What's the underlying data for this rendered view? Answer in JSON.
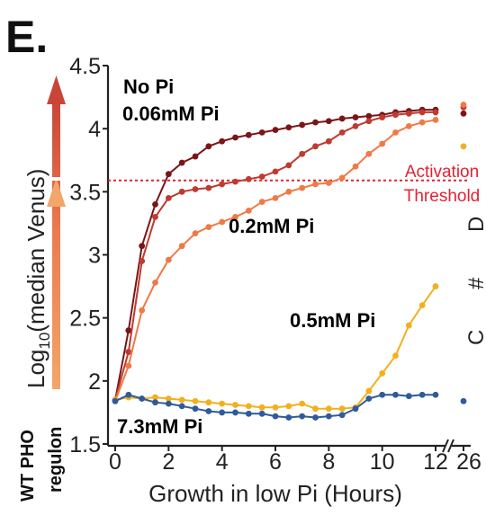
{
  "panel_label": "E.",
  "threshold_label_1": "Activation",
  "threshold_label_2": "Threshold",
  "side_label_1": "WT PHO",
  "side_label_2": "regulon",
  "colors": {
    "no_pi": "#7a1518",
    "p006": "#bf3a30",
    "p02": "#ef7a45",
    "p05": "#f2b01e",
    "p73": "#2f5a9c",
    "threshold": "#e32232"
  },
  "chart_data": {
    "type": "line",
    "xlabel": "Growth in low Pi (Hours)",
    "ylabel_main": "Log",
    "ylabel_sub": "10",
    "ylabel_rest": "(median Venus)",
    "xlim": [
      0,
      12
    ],
    "ylim": [
      1.5,
      4.5
    ],
    "x_ticks": [
      "0",
      "2",
      "4",
      "6",
      "8",
      "10",
      "12"
    ],
    "x_break_tick": "26",
    "y_ticks": [
      "1.5",
      "2",
      "2.5",
      "3",
      "3.5",
      "4",
      "4.5"
    ],
    "threshold": 3.59,
    "series": [
      {
        "name": "No Pi",
        "color_key": "no_pi",
        "x": [
          0,
          0.5,
          1,
          1.5,
          2,
          2.5,
          3,
          3.5,
          4,
          4.5,
          5,
          5.5,
          6,
          6.5,
          7,
          7.5,
          8,
          8.5,
          9,
          9.5,
          10,
          10.5,
          11,
          11.5,
          12
        ],
        "y": [
          1.85,
          2.4,
          3.07,
          3.4,
          3.64,
          3.73,
          3.78,
          3.86,
          3.9,
          3.93,
          3.95,
          3.97,
          3.99,
          4.01,
          4.03,
          4.05,
          4.06,
          4.08,
          4.09,
          4.1,
          4.11,
          4.13,
          4.14,
          4.15,
          4.15
        ],
        "y26": 4.12
      },
      {
        "name": "0.06mM Pi",
        "color_key": "p006",
        "x": [
          0,
          0.5,
          1,
          1.5,
          2,
          2.5,
          3,
          3.5,
          4,
          4.5,
          5,
          5.5,
          6,
          6.5,
          7,
          7.5,
          8,
          8.5,
          9,
          9.5,
          10,
          10.5,
          11,
          11.5,
          12
        ],
        "y": [
          1.85,
          2.23,
          2.95,
          3.3,
          3.45,
          3.5,
          3.52,
          3.53,
          3.56,
          3.58,
          3.6,
          3.62,
          3.66,
          3.71,
          3.8,
          3.86,
          3.9,
          3.97,
          4.02,
          4.06,
          4.09,
          4.11,
          4.12,
          4.13,
          4.13
        ],
        "y26": 4.17
      },
      {
        "name": "0.2mM Pi",
        "color_key": "p02",
        "x": [
          0,
          0.5,
          1,
          1.5,
          2,
          2.5,
          3,
          3.5,
          4,
          4.5,
          5,
          5.5,
          6,
          6.5,
          7,
          7.5,
          8,
          8.5,
          9,
          9.5,
          10,
          10.5,
          11,
          11.5,
          12
        ],
        "y": [
          1.84,
          2.12,
          2.56,
          2.78,
          2.96,
          3.07,
          3.17,
          3.22,
          3.26,
          3.3,
          3.35,
          3.42,
          3.45,
          3.5,
          3.53,
          3.56,
          3.57,
          3.61,
          3.7,
          3.8,
          3.88,
          3.97,
          4.02,
          4.05,
          4.07
        ],
        "y26": 4.19
      },
      {
        "name": "0.5mM Pi",
        "color_key": "p05",
        "x": [
          0,
          0.5,
          1,
          1.5,
          2,
          2.5,
          3,
          3.5,
          4,
          4.5,
          5,
          5.5,
          6,
          6.5,
          7,
          7.5,
          8,
          8.5,
          9,
          9.5,
          10,
          10.5,
          11,
          11.5,
          12
        ],
        "y": [
          1.85,
          1.87,
          1.86,
          1.87,
          1.86,
          1.85,
          1.84,
          1.83,
          1.82,
          1.81,
          1.8,
          1.79,
          1.79,
          1.8,
          1.82,
          1.78,
          1.78,
          1.78,
          1.79,
          1.92,
          2.06,
          2.2,
          2.44,
          2.6,
          2.75
        ],
        "y26": 3.86
      },
      {
        "name": "7.3mM Pi",
        "color_key": "p73",
        "x": [
          0,
          0.5,
          1,
          1.5,
          2,
          2.5,
          3,
          3.5,
          4,
          4.5,
          5,
          5.5,
          6,
          6.5,
          7,
          7.5,
          8,
          8.5,
          9,
          9.5,
          10,
          10.5,
          11,
          11.5,
          12
        ],
        "y": [
          1.84,
          1.89,
          1.86,
          1.83,
          1.82,
          1.8,
          1.78,
          1.76,
          1.75,
          1.75,
          1.74,
          1.74,
          1.72,
          1.71,
          1.72,
          1.71,
          1.72,
          1.73,
          1.78,
          1.86,
          1.89,
          1.89,
          1.88,
          1.89,
          1.89
        ],
        "y26": 1.84
      }
    ],
    "series_labels": [
      {
        "text": "No Pi",
        "color_key": "no_pi"
      },
      {
        "text": "0.06mM Pi",
        "color_key": "p006"
      },
      {
        "text": "0.2mM Pi",
        "color_key": "p02"
      },
      {
        "text": "0.5mM Pi",
        "color_key": "p05"
      },
      {
        "text": "7.3mM Pi",
        "color_key": "p73"
      }
    ]
  }
}
